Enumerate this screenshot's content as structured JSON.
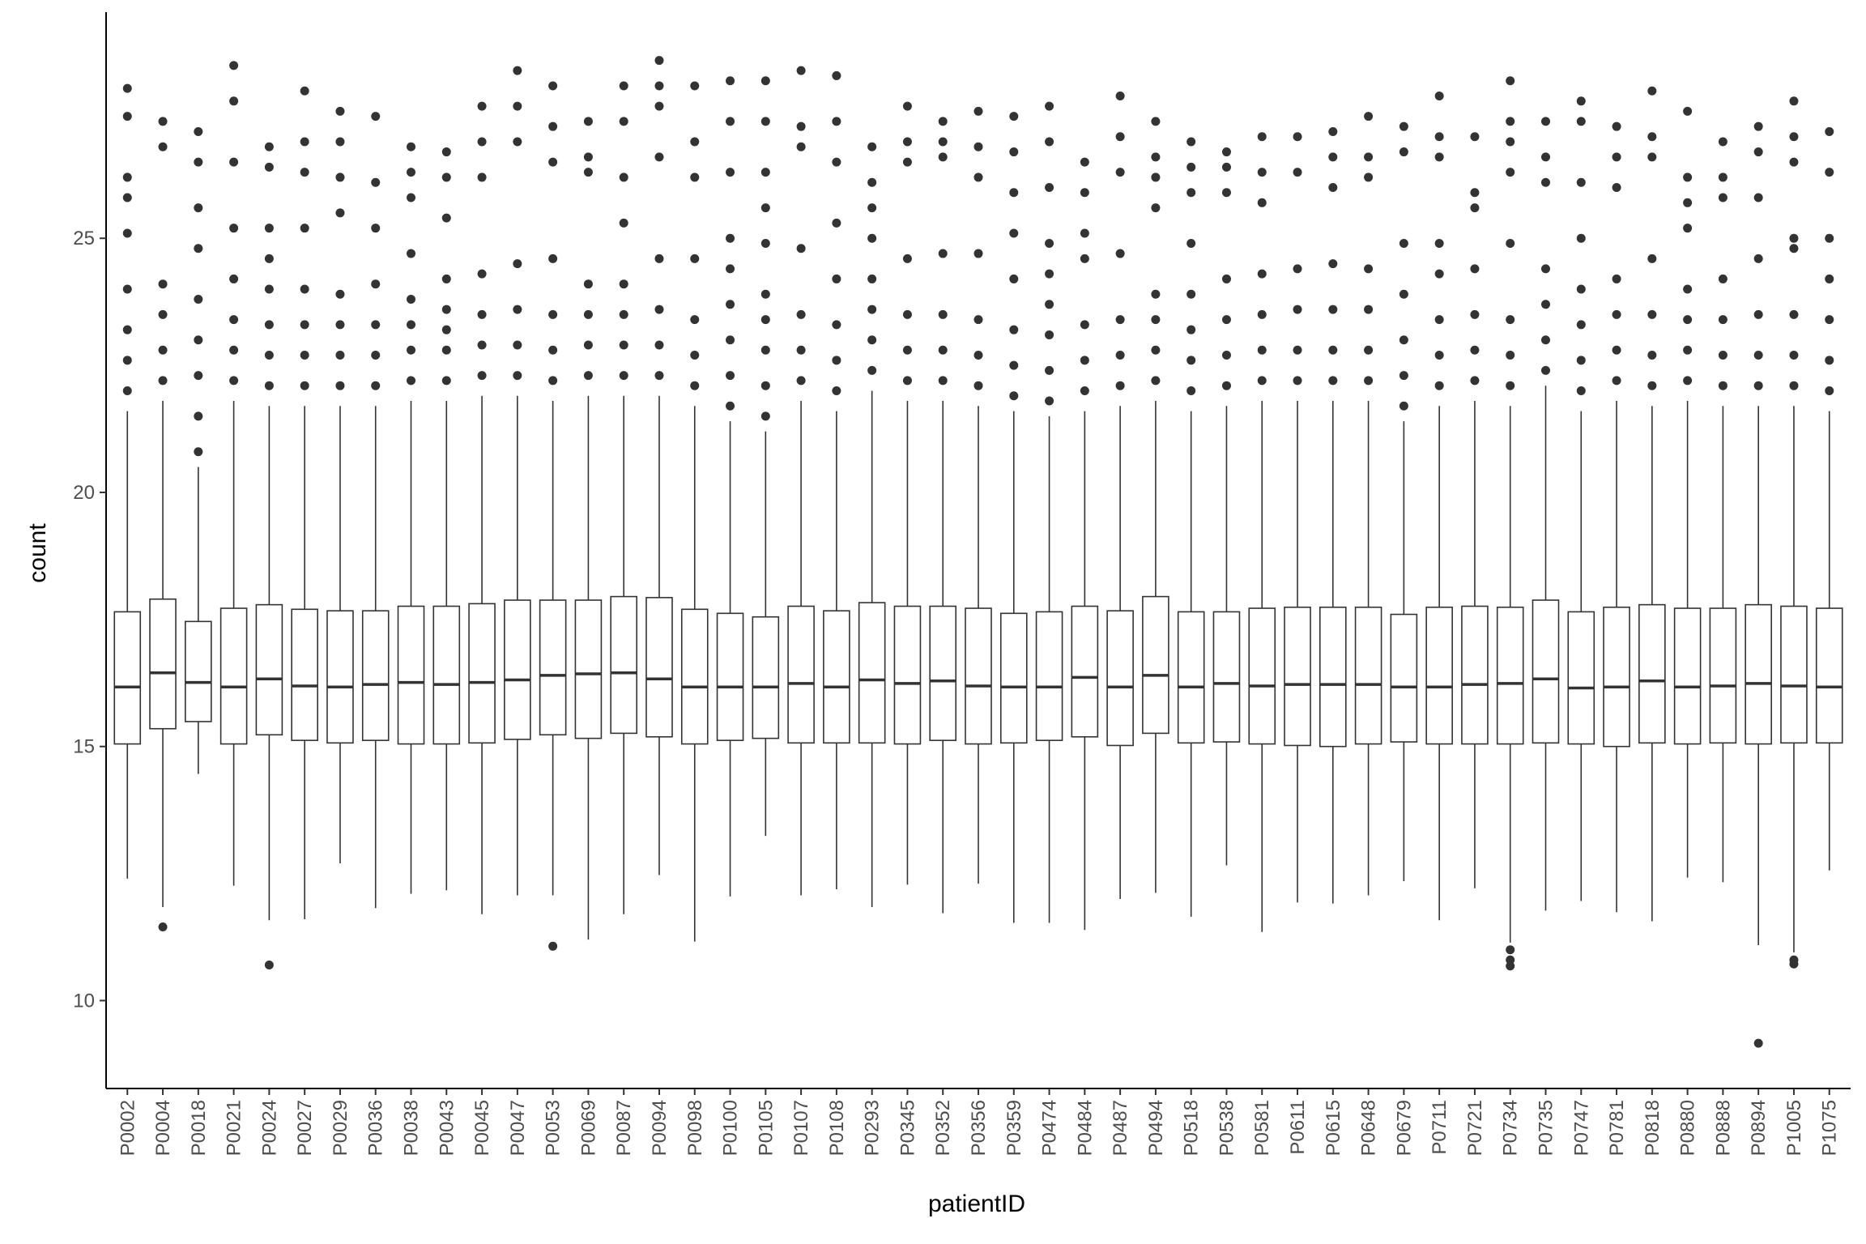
{
  "chart_data": {
    "type": "box",
    "x_label": "patientID",
    "y_label": "count",
    "ylim": [
      8.27,
      29.45
    ],
    "yticks": [
      10,
      15,
      20,
      25
    ],
    "color": "#333333",
    "categories": [
      "P0002",
      "P0004",
      "P0018",
      "P0021",
      "P0024",
      "P0027",
      "P0029",
      "P0036",
      "P0038",
      "P0043",
      "P0045",
      "P0047",
      "P0053",
      "P0069",
      "P0087",
      "P0094",
      "P0098",
      "P0100",
      "P0105",
      "P0107",
      "P0108",
      "P0293",
      "P0345",
      "P0352",
      "P0356",
      "P0359",
      "P0474",
      "P0484",
      "P0487",
      "P0494",
      "P0518",
      "P0538",
      "P0581",
      "P0611",
      "P0615",
      "P0648",
      "P0679",
      "P0711",
      "P0721",
      "P0734",
      "P0735",
      "P0747",
      "P0781",
      "P0818",
      "P0880",
      "P0888",
      "P0894",
      "P1005",
      "P1075"
    ],
    "whisker_low": [
      12.4,
      11.84,
      14.46,
      12.26,
      11.58,
      11.6,
      12.7,
      11.82,
      12.1,
      12.17,
      11.7,
      12.07,
      12.07,
      11.2,
      11.7,
      12.47,
      11.16,
      12.05,
      13.24,
      12.07,
      12.19,
      11.84,
      12.28,
      11.72,
      12.3,
      11.53,
      11.53,
      11.39,
      12.0,
      12.12,
      11.65,
      12.66,
      11.35,
      11.93,
      11.91,
      12.07,
      12.35,
      11.58,
      12.21,
      11.14,
      11.77,
      11.96,
      11.74,
      11.56,
      12.42,
      12.33,
      11.09,
      10.95,
      12.56
    ],
    "q1": [
      15.05,
      15.35,
      15.49,
      15.05,
      15.23,
      15.12,
      15.07,
      15.12,
      15.05,
      15.05,
      15.07,
      15.14,
      15.23,
      15.16,
      15.26,
      15.19,
      15.05,
      15.12,
      15.16,
      15.07,
      15.07,
      15.07,
      15.05,
      15.12,
      15.05,
      15.07,
      15.12,
      15.19,
      15.02,
      15.26,
      15.07,
      15.09,
      15.05,
      15.02,
      15.0,
      15.05,
      15.09,
      15.05,
      15.05,
      15.05,
      15.07,
      15.05,
      15.0,
      15.07,
      15.05,
      15.07,
      15.05,
      15.07,
      15.07
    ],
    "median": [
      16.17,
      16.45,
      16.26,
      16.17,
      16.33,
      16.19,
      16.17,
      16.22,
      16.26,
      16.22,
      16.26,
      16.31,
      16.4,
      16.43,
      16.45,
      16.33,
      16.17,
      16.17,
      16.17,
      16.24,
      16.17,
      16.31,
      16.24,
      16.29,
      16.19,
      16.17,
      16.17,
      16.36,
      16.17,
      16.4,
      16.17,
      16.24,
      16.19,
      16.22,
      16.22,
      16.22,
      16.17,
      16.17,
      16.22,
      16.24,
      16.33,
      16.15,
      16.17,
      16.29,
      16.17,
      16.19,
      16.24,
      16.19,
      16.17
    ],
    "q3": [
      17.65,
      17.9,
      17.46,
      17.72,
      17.79,
      17.7,
      17.67,
      17.67,
      17.76,
      17.76,
      17.81,
      17.88,
      17.88,
      17.88,
      17.95,
      17.93,
      17.7,
      17.62,
      17.55,
      17.76,
      17.67,
      17.83,
      17.76,
      17.76,
      17.72,
      17.62,
      17.65,
      17.76,
      17.67,
      17.95,
      17.65,
      17.65,
      17.72,
      17.74,
      17.74,
      17.74,
      17.6,
      17.74,
      17.76,
      17.74,
      17.88,
      17.65,
      17.74,
      17.79,
      17.72,
      17.72,
      17.79,
      17.76,
      17.72
    ],
    "whisker_high": [
      21.6,
      21.8,
      20.5,
      21.8,
      21.7,
      21.7,
      21.7,
      21.7,
      21.8,
      21.8,
      21.9,
      21.9,
      21.8,
      21.9,
      21.9,
      21.9,
      21.7,
      21.4,
      21.2,
      21.8,
      21.6,
      22.0,
      21.8,
      21.8,
      21.7,
      21.6,
      21.5,
      21.6,
      21.7,
      21.8,
      21.6,
      21.7,
      21.8,
      21.8,
      21.8,
      21.8,
      21.4,
      21.7,
      21.8,
      21.7,
      22.1,
      21.6,
      21.8,
      21.7,
      21.8,
      21.7,
      21.7,
      21.7,
      21.6
    ],
    "outliers": [
      [
        22.0,
        22.6,
        23.2,
        24.0,
        25.1,
        25.8,
        26.2,
        27.4,
        27.95
      ],
      [
        11.45,
        22.2,
        22.8,
        23.5,
        24.1,
        26.8,
        27.3
      ],
      [
        20.8,
        21.5,
        22.3,
        23.0,
        23.8,
        24.8,
        25.6,
        26.5,
        27.1
      ],
      [
        22.2,
        22.8,
        23.4,
        24.2,
        25.2,
        26.5,
        27.7,
        28.4
      ],
      [
        10.7,
        22.1,
        22.7,
        23.3,
        24.0,
        24.6,
        25.2,
        26.4,
        26.8
      ],
      [
        22.1,
        22.7,
        23.3,
        24.0,
        25.2,
        26.3,
        26.9,
        27.9
      ],
      [
        22.1,
        22.7,
        23.3,
        23.9,
        25.5,
        26.2,
        26.9,
        27.5
      ],
      [
        22.1,
        22.7,
        23.3,
        24.1,
        25.2,
        26.1,
        27.4
      ],
      [
        22.2,
        22.8,
        23.3,
        23.8,
        24.7,
        25.8,
        26.3,
        26.8
      ],
      [
        22.2,
        22.8,
        23.2,
        23.6,
        24.2,
        25.4,
        26.2,
        26.7
      ],
      [
        22.3,
        22.9,
        23.5,
        24.3,
        26.2,
        26.9,
        27.6
      ],
      [
        22.3,
        22.9,
        23.6,
        24.5,
        26.9,
        27.6,
        28.3
      ],
      [
        11.07,
        22.2,
        22.8,
        23.5,
        24.6,
        26.5,
        27.2,
        28.0
      ],
      [
        22.3,
        22.9,
        23.5,
        24.1,
        26.3,
        26.6,
        27.3
      ],
      [
        22.3,
        22.9,
        23.5,
        24.1,
        25.3,
        26.2,
        27.3,
        28.0
      ],
      [
        22.3,
        22.9,
        23.6,
        24.6,
        26.6,
        27.6,
        28.0,
        28.5
      ],
      [
        22.1,
        22.7,
        23.4,
        24.6,
        26.2,
        26.9,
        28.0
      ],
      [
        21.7,
        22.3,
        23.0,
        23.7,
        24.4,
        25.0,
        26.3,
        27.3,
        28.1
      ],
      [
        21.5,
        22.1,
        22.8,
        23.4,
        23.9,
        24.9,
        25.6,
        26.3,
        27.3,
        28.1
      ],
      [
        22.2,
        22.8,
        23.5,
        24.8,
        26.8,
        27.2,
        28.3
      ],
      [
        22.0,
        22.6,
        23.3,
        24.2,
        25.3,
        26.5,
        27.3,
        28.2
      ],
      [
        22.4,
        23.0,
        23.6,
        24.2,
        25.0,
        25.6,
        26.1,
        26.8
      ],
      [
        22.2,
        22.8,
        23.5,
        24.6,
        26.5,
        26.9,
        27.6
      ],
      [
        22.2,
        22.8,
        23.5,
        24.7,
        26.6,
        26.9,
        27.3
      ],
      [
        22.1,
        22.7,
        23.4,
        24.7,
        26.2,
        26.8,
        27.5
      ],
      [
        21.9,
        22.5,
        23.2,
        24.2,
        25.1,
        25.9,
        26.7,
        27.4
      ],
      [
        21.8,
        22.4,
        23.1,
        23.7,
        24.3,
        24.9,
        26.0,
        26.9,
        27.6
      ],
      [
        22.0,
        22.6,
        23.3,
        24.6,
        25.1,
        25.9,
        26.5
      ],
      [
        22.1,
        22.7,
        23.4,
        24.7,
        26.3,
        27.0,
        27.8
      ],
      [
        22.2,
        22.8,
        23.4,
        23.9,
        25.6,
        26.2,
        26.6,
        27.3
      ],
      [
        22.0,
        22.6,
        23.2,
        23.9,
        24.9,
        25.9,
        26.4,
        26.9
      ],
      [
        22.1,
        22.7,
        23.4,
        24.2,
        25.9,
        26.4,
        26.7
      ],
      [
        22.2,
        22.8,
        23.5,
        24.3,
        25.7,
        26.3,
        27.0
      ],
      [
        22.2,
        22.8,
        23.6,
        24.4,
        26.3,
        27.0
      ],
      [
        22.2,
        22.8,
        23.6,
        24.5,
        26.0,
        26.6,
        27.1
      ],
      [
        22.2,
        22.8,
        23.6,
        24.4,
        26.2,
        26.6,
        27.4
      ],
      [
        21.7,
        22.3,
        23.0,
        23.9,
        24.9,
        26.7,
        27.2
      ],
      [
        22.1,
        22.7,
        23.4,
        24.3,
        24.9,
        26.6,
        27.0,
        27.8
      ],
      [
        22.2,
        22.8,
        23.5,
        24.4,
        25.6,
        25.9,
        27.0
      ],
      [
        10.68,
        10.8,
        11.0,
        22.1,
        22.7,
        23.4,
        24.9,
        26.3,
        26.9,
        27.3,
        28.1
      ],
      [
        22.4,
        23.0,
        23.7,
        24.4,
        26.1,
        26.6,
        27.3
      ],
      [
        22.0,
        22.6,
        23.3,
        24.0,
        25.0,
        26.1,
        27.3,
        27.7
      ],
      [
        22.2,
        22.8,
        23.5,
        24.2,
        26.0,
        26.6,
        27.2
      ],
      [
        22.1,
        22.7,
        23.5,
        24.6,
        26.6,
        27.0,
        27.9
      ],
      [
        22.2,
        22.8,
        23.4,
        24.0,
        25.2,
        25.7,
        26.2,
        27.5
      ],
      [
        22.1,
        22.7,
        23.4,
        24.2,
        25.8,
        26.2,
        26.9
      ],
      [
        9.16,
        22.1,
        22.7,
        23.5,
        24.6,
        25.8,
        26.7,
        27.2
      ],
      [
        10.72,
        10.8,
        22.1,
        22.7,
        23.5,
        24.8,
        25.0,
        26.5,
        27.0,
        27.7
      ],
      [
        22.0,
        22.6,
        23.4,
        24.2,
        25.0,
        26.3,
        27.1
      ]
    ]
  }
}
